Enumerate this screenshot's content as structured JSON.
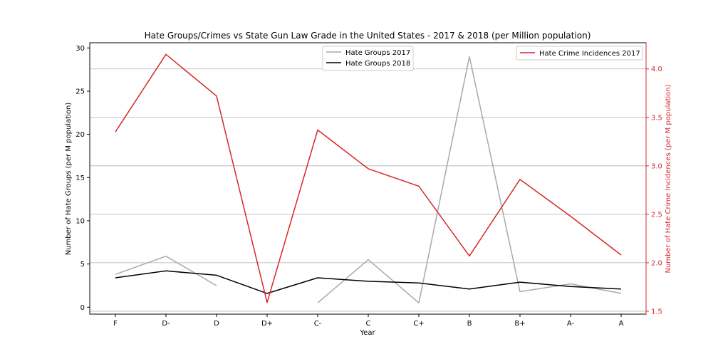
{
  "chart_data": {
    "type": "line",
    "title": "Hate Groups/Crimes vs State Gun Law Grade in the United States - 2017 & 2018 (per Million population)",
    "xlabel": "Year",
    "ylabel_left": "Number of Hate Groups (per M population)",
    "ylabel_right": "Number of Hate Crime Incidences (per M population)",
    "categories": [
      "F",
      "D-",
      "D",
      "D+",
      "C-",
      "C",
      "C+",
      "B",
      "B+",
      "A-",
      "A"
    ],
    "left_axis": {
      "ylim": [
        -0.8,
        30.6
      ],
      "ticks": [
        0,
        5,
        10,
        15,
        20,
        25,
        30
      ],
      "tick_labels": [
        "0",
        "5",
        "10",
        "15",
        "20",
        "25",
        "30"
      ]
    },
    "right_axis": {
      "ylim": [
        1.47,
        4.27
      ],
      "ticks": [
        1.5,
        2.0,
        2.5,
        3.0,
        3.5,
        4.0
      ],
      "tick_labels": [
        "1.5",
        "2.0",
        "2.5",
        "3.0",
        "3.5",
        "4.0"
      ],
      "color": "#d62728"
    },
    "grid": "horizontal lines at right-axis ticks",
    "series": [
      {
        "name": "Hate Groups 2017",
        "axis": "left",
        "color": "#a9a9a9",
        "values": [
          3.8,
          5.9,
          2.5,
          null,
          0.5,
          5.5,
          0.5,
          29.0,
          1.8,
          2.7,
          1.6
        ]
      },
      {
        "name": "Hate Groups 2018",
        "axis": "left",
        "color": "#000000",
        "values": [
          3.4,
          4.2,
          3.7,
          1.6,
          3.4,
          3.0,
          2.8,
          2.1,
          2.9,
          2.4,
          2.1
        ]
      },
      {
        "name": "Hate Crime Incidences 2017",
        "axis": "right",
        "color": "#d62728",
        "values": [
          3.35,
          4.15,
          3.72,
          1.59,
          3.37,
          2.97,
          2.79,
          2.07,
          2.86,
          2.48,
          2.08
        ]
      }
    ],
    "legends": [
      {
        "placement": "upper-center",
        "entries": [
          "Hate Groups 2017",
          "Hate Groups 2018"
        ]
      },
      {
        "placement": "upper-right",
        "entries": [
          "Hate Crime Incidences 2017"
        ]
      }
    ]
  }
}
